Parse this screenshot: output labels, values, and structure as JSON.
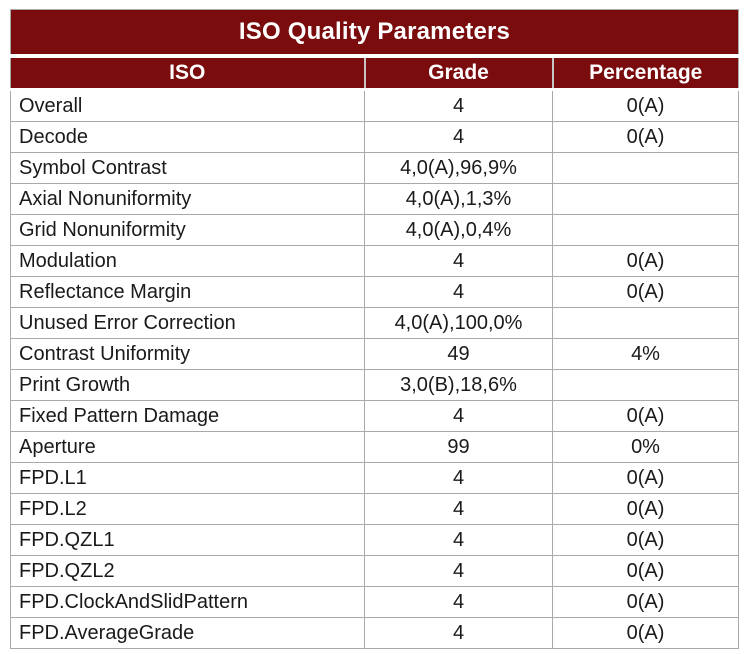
{
  "table": {
    "title": "ISO Quality Parameters",
    "columns": [
      "ISO",
      "Grade",
      "Percentage"
    ],
    "rows": [
      {
        "iso": "Overall",
        "grade": "4",
        "percentage": "0(A)"
      },
      {
        "iso": "Decode",
        "grade": "4",
        "percentage": "0(A)"
      },
      {
        "iso": "Symbol Contrast",
        "grade": "4,0(A),96,9%",
        "percentage": ""
      },
      {
        "iso": "Axial Nonuniformity",
        "grade": "4,0(A),1,3%",
        "percentage": ""
      },
      {
        "iso": "Grid Nonuniformity",
        "grade": "4,0(A),0,4%",
        "percentage": ""
      },
      {
        "iso": "Modulation",
        "grade": "4",
        "percentage": "0(A)"
      },
      {
        "iso": "Reflectance Margin",
        "grade": "4",
        "percentage": "0(A)"
      },
      {
        "iso": "Unused Error Correction",
        "grade": "4,0(A),100,0%",
        "percentage": ""
      },
      {
        "iso": "Contrast Uniformity",
        "grade": "49",
        "percentage": "4%"
      },
      {
        "iso": "Print Growth",
        "grade": "3,0(B),18,6%",
        "percentage": ""
      },
      {
        "iso": "Fixed Pattern Damage",
        "grade": "4",
        "percentage": "0(A)"
      },
      {
        "iso": "Aperture",
        "grade": "99",
        "percentage": "0%"
      },
      {
        "iso": "FPD.L1",
        "grade": "4",
        "percentage": "0(A)"
      },
      {
        "iso": "FPD.L2",
        "grade": "4",
        "percentage": "0(A)"
      },
      {
        "iso": "FPD.QZL1",
        "grade": "4",
        "percentage": "0(A)"
      },
      {
        "iso": "FPD.QZL2",
        "grade": "4",
        "percentage": "0(A)"
      },
      {
        "iso": "FPD.ClockAndSlidPattern",
        "grade": "4",
        "percentage": "0(A)"
      },
      {
        "iso": "FPD.AverageGrade",
        "grade": "4",
        "percentage": "0(A)"
      }
    ]
  },
  "colors": {
    "header_bg": "#7a0c0e",
    "header_text": "#ffffff",
    "body_text": "#1a1a1a",
    "grid_line": "#a9a9a9",
    "header_divider": "#c6c6c6",
    "gap_line": "#ffffff"
  },
  "chart_data": {
    "type": "table",
    "title": "ISO Quality Parameters",
    "columns": [
      "ISO",
      "Grade",
      "Percentage"
    ],
    "rows": [
      [
        "Overall",
        "4",
        "0(A)"
      ],
      [
        "Decode",
        "4",
        "0(A)"
      ],
      [
        "Symbol Contrast",
        "4,0(A),96,9%",
        ""
      ],
      [
        "Axial Nonuniformity",
        "4,0(A),1,3%",
        ""
      ],
      [
        "Grid Nonuniformity",
        "4,0(A),0,4%",
        ""
      ],
      [
        "Modulation",
        "4",
        "0(A)"
      ],
      [
        "Reflectance Margin",
        "4",
        "0(A)"
      ],
      [
        "Unused Error Correction",
        "4,0(A),100,0%",
        ""
      ],
      [
        "Contrast Uniformity",
        "49",
        "4%"
      ],
      [
        "Print Growth",
        "3,0(B),18,6%",
        ""
      ],
      [
        "Fixed Pattern Damage",
        "4",
        "0(A)"
      ],
      [
        "Aperture",
        "99",
        "0%"
      ],
      [
        "FPD.L1",
        "4",
        "0(A)"
      ],
      [
        "FPD.L2",
        "4",
        "0(A)"
      ],
      [
        "FPD.QZL1",
        "4",
        "0(A)"
      ],
      [
        "FPD.QZL2",
        "4",
        "0(A)"
      ],
      [
        "FPD.ClockAndSlidPattern",
        "4",
        "0(A)"
      ],
      [
        "FPD.AverageGrade",
        "4",
        "0(A)"
      ]
    ]
  }
}
